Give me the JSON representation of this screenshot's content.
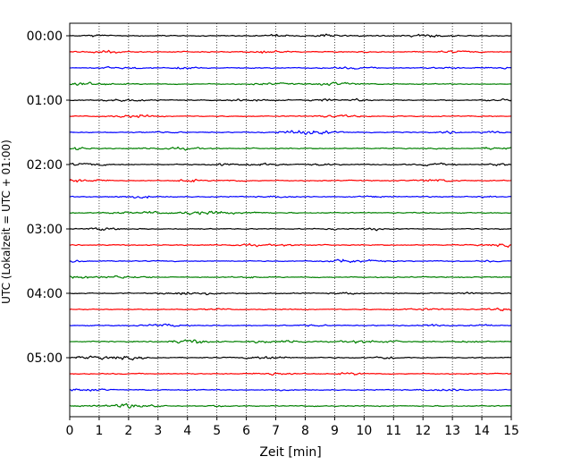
{
  "chart_data": {
    "type": "line",
    "title": "",
    "xlabel": "Zeit  [min]",
    "ylabel": "UTC (Lokalzeit = UTC + 01:00)",
    "xlim": [
      0,
      15
    ],
    "x_ticks": [
      "0",
      "1",
      "2",
      "3",
      "4",
      "5",
      "6",
      "7",
      "8",
      "9",
      "10",
      "11",
      "12",
      "13",
      "14",
      "15"
    ],
    "y_tick_labels": [
      "00:00",
      "01:00",
      "02:00",
      "03:00",
      "04:00",
      "05:00"
    ],
    "grid": "vertical dotted at each minute",
    "trace_colors": [
      "#000000",
      "#ff0000",
      "#0000ff",
      "#008000"
    ],
    "traces": [
      {
        "start": "00:00",
        "color": "#000000"
      },
      {
        "start": "00:15",
        "color": "#ff0000"
      },
      {
        "start": "00:30",
        "color": "#0000ff"
      },
      {
        "start": "00:45",
        "color": "#008000"
      },
      {
        "start": "01:00",
        "color": "#000000"
      },
      {
        "start": "01:15",
        "color": "#ff0000"
      },
      {
        "start": "01:30",
        "color": "#0000ff"
      },
      {
        "start": "01:45",
        "color": "#008000"
      },
      {
        "start": "02:00",
        "color": "#000000"
      },
      {
        "start": "02:15",
        "color": "#ff0000"
      },
      {
        "start": "02:30",
        "color": "#0000ff"
      },
      {
        "start": "02:45",
        "color": "#008000"
      },
      {
        "start": "03:00",
        "color": "#000000"
      },
      {
        "start": "03:15",
        "color": "#ff0000"
      },
      {
        "start": "03:30",
        "color": "#0000ff"
      },
      {
        "start": "03:45",
        "color": "#008000"
      },
      {
        "start": "04:00",
        "color": "#000000"
      },
      {
        "start": "04:15",
        "color": "#ff0000"
      },
      {
        "start": "04:30",
        "color": "#0000ff"
      },
      {
        "start": "04:45",
        "color": "#008000"
      },
      {
        "start": "05:00",
        "color": "#000000"
      },
      {
        "start": "05:15",
        "color": "#ff0000"
      },
      {
        "start": "05:30",
        "color": "#0000ff"
      },
      {
        "start": "05:45",
        "color": "#008000"
      }
    ]
  }
}
